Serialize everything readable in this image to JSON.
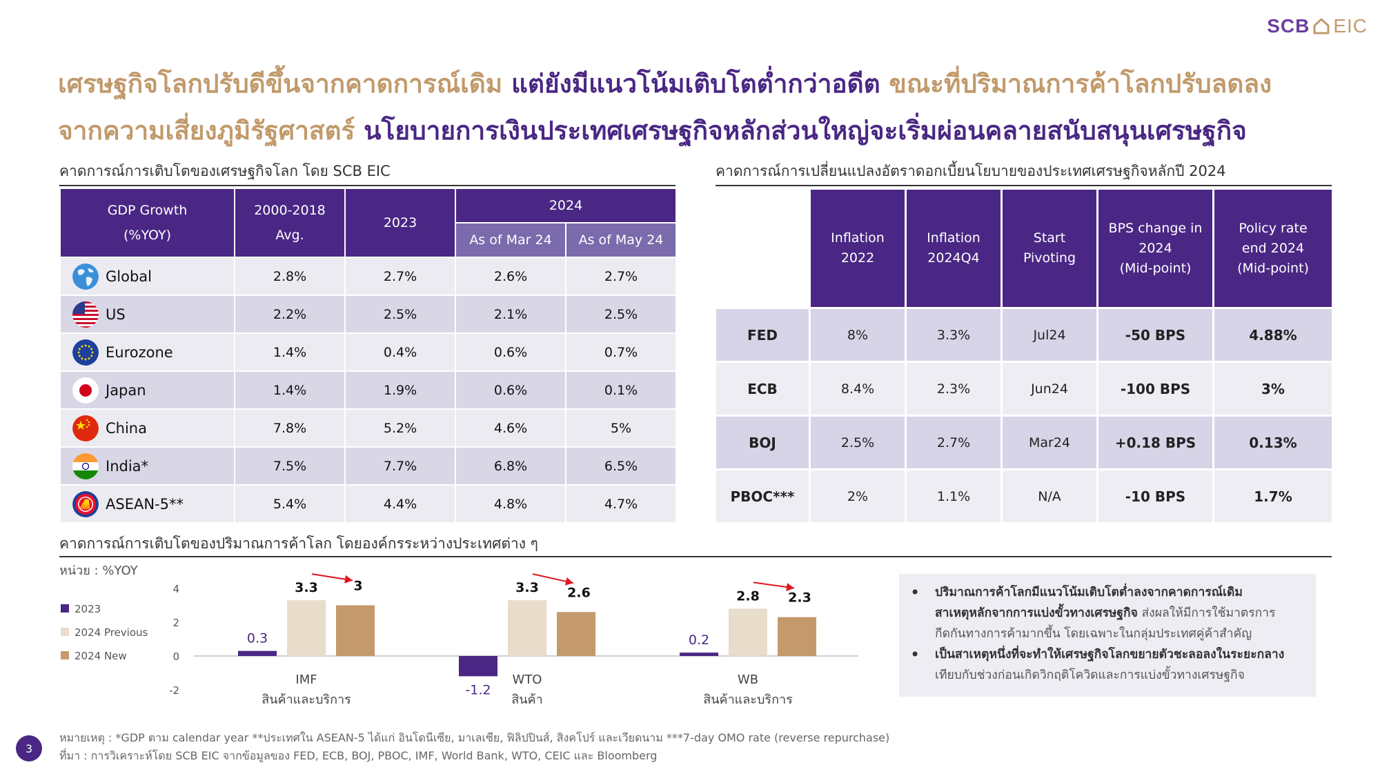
{
  "logo": {
    "scb": "SCB",
    "eic": "EIC"
  },
  "headline": {
    "line1_gold": "เศรษฐกิจโลกปรับดีขึ้นจากคาดการณ์เดิม",
    "line1_purple": "แต่ยังมีแนวโน้มเติบโตต่ำกว่าอดีต",
    "line1_gold2": "ขณะที่ปริมาณการค้าโลกปรับลดลง",
    "line2_gold": "จากความเสี่ยงภูมิรัฐศาสตร์",
    "line2_purple": "นโยบายการเงินประเทศเศรษฐกิจหลักส่วนใหญ่จะเริ่มผ่อนคลายสนับสนุนเศรษฐกิจ"
  },
  "gdp_section": {
    "title": "คาดการณ์การเติบโตของเศรษฐกิจโลก โดย SCB EIC",
    "header": {
      "gdp_growth_l1": "GDP Growth",
      "gdp_growth_l2": "(%YOY)",
      "avg_l1": "2000-2018",
      "avg_l2": "Avg.",
      "y2023": "2023",
      "y2024": "2024",
      "mar24": "As of Mar 24",
      "may24": "As of May 24"
    },
    "rows": [
      {
        "country": "Global",
        "flag_icon": "globe-icon",
        "avg": "2.8%",
        "y2023": "2.7%",
        "mar24": "2.6%",
        "may24": "2.7%"
      },
      {
        "country": "US",
        "flag_icon": "us-flag-icon",
        "avg": "2.2%",
        "y2023": "2.5%",
        "mar24": "2.1%",
        "may24": "2.5%"
      },
      {
        "country": "Eurozone",
        "flag_icon": "eu-flag-icon",
        "avg": "1.4%",
        "y2023": "0.4%",
        "mar24": "0.6%",
        "may24": "0.7%"
      },
      {
        "country": "Japan",
        "flag_icon": "japan-flag-icon",
        "avg": "1.4%",
        "y2023": "1.9%",
        "mar24": "0.6%",
        "may24": "0.1%"
      },
      {
        "country": "China",
        "flag_icon": "china-flag-icon",
        "avg": "7.8%",
        "y2023": "5.2%",
        "mar24": "4.6%",
        "may24": "5%"
      },
      {
        "country": "India*",
        "flag_icon": "india-flag-icon",
        "avg": "7.5%",
        "y2023": "7.7%",
        "mar24": "6.8%",
        "may24": "6.5%"
      },
      {
        "country": "ASEAN-5**",
        "flag_icon": "asean-emblem-icon",
        "avg": "5.4%",
        "y2023": "4.4%",
        "mar24": "4.8%",
        "may24": "4.7%"
      }
    ]
  },
  "policy_section": {
    "title": "คาดการณ์การเปลี่ยนแปลงอัตราดอกเบี้ยนโยบายของประเทศเศรษฐกิจหลักปี 2024",
    "header": {
      "infl2022_l1": "Inflation",
      "infl2022_l2": "2022",
      "infl2024_l1": "Inflation",
      "infl2024_l2": "2024Q4",
      "pivot_l1": "Start",
      "pivot_l2": "Pivoting",
      "bps_l1": "BPS change in",
      "bps_l2": "2024",
      "bps_l3": "(Mid-point)",
      "rate_l1": "Policy rate",
      "rate_l2": "end 2024",
      "rate_l3": "(Mid-point)"
    },
    "rows": [
      {
        "bank": "FED",
        "infl2022": "8%",
        "infl2024": "3.3%",
        "pivot": "Jul24",
        "bps": "-50 BPS",
        "rate": "4.88%"
      },
      {
        "bank": "ECB",
        "infl2022": "8.4%",
        "infl2024": "2.3%",
        "pivot": "Jun24",
        "bps": "-100 BPS",
        "rate": "3%"
      },
      {
        "bank": "BOJ",
        "infl2022": "2.5%",
        "infl2024": "2.7%",
        "pivot": "Mar24",
        "bps": "+0.18 BPS",
        "rate": "0.13%"
      },
      {
        "bank": "PBOC***",
        "infl2022": "2%",
        "infl2024": "1.1%",
        "pivot": "N/A",
        "bps": "-10 BPS",
        "rate": "1.7%"
      }
    ]
  },
  "trade_section": {
    "title": "คาดการณ์การเติบโตของปริมาณการค้าโลก โดยองค์กรระหว่างประเทศต่าง ๆ",
    "unit": "หน่วย : %YOY"
  },
  "chart_data": {
    "type": "bar",
    "categories": [
      "IMF",
      "WTO",
      "WB"
    ],
    "category_sublabels": [
      "สินค้าและบริการ",
      "สินค้า",
      "สินค้าและบริการ"
    ],
    "series": [
      {
        "name": "2023",
        "values": [
          0.3,
          -1.2,
          0.2
        ],
        "color": "#4a2784"
      },
      {
        "name": "2024 Previous",
        "values": [
          3.3,
          3.3,
          2.8
        ],
        "color": "#e8dccb"
      },
      {
        "name": "2024 New",
        "values": [
          3,
          2.6,
          2.3
        ],
        "color": "#c49a6c"
      }
    ],
    "data_labels": [
      [
        "0.3",
        "3.3",
        "3"
      ],
      [
        "-1.2",
        "3.3",
        "2.6"
      ],
      [
        "0.2",
        "2.8",
        "2.3"
      ]
    ],
    "ylim": [
      -2,
      4
    ],
    "yticks": [
      -2,
      0,
      2,
      4
    ],
    "legend_position": "left",
    "grid": false,
    "annotation": "red arrows from 2024 Previous to 2024 New indicating downward revision",
    "arrow_color": "#e0141e"
  },
  "bullets": [
    {
      "bold": "ปริมาณการค้าโลกมีแนวโน้มเติบโตต่ำลงจากคาดการณ์เดิม",
      "bold2": "สาเหตุหลักจากการแบ่งขั้วทางเศรษฐกิจ",
      "rest": " ส่งผลให้มีการใช้มาตรการกีดกันทางการค้ามากขึ้น โดยเฉพาะในกลุ่มประเทศคู่ค้าสำคัญ"
    },
    {
      "bold": "เป็นสาเหตุหนึ่งที่จะทำให้เศรษฐกิจโลกขยายตัวชะลอลงในระยะกลาง",
      "rest": "เทียบกับช่วงก่อนเกิดวิกฤติโควิดและการแบ่งขั้วทางเศรษฐกิจ"
    }
  ],
  "footnotes": {
    "note": "หมายเหตุ : *GDP ตาม calendar year **ประเทศใน ASEAN-5 ได้แก่ อินโดนีเซีย, มาเลเซีย, ฟิลิปปินส์, สิงคโปร์ และเวียดนาม ***7-day OMO rate (reverse repurchase)",
    "source": "ที่มา : การวิเคราะห์โดย SCB EIC จากข้อมูลของ FED, ECB, BOJ, PBOC, IMF, World Bank, WTO, CEIC และ Bloomberg"
  },
  "page_number": "3"
}
